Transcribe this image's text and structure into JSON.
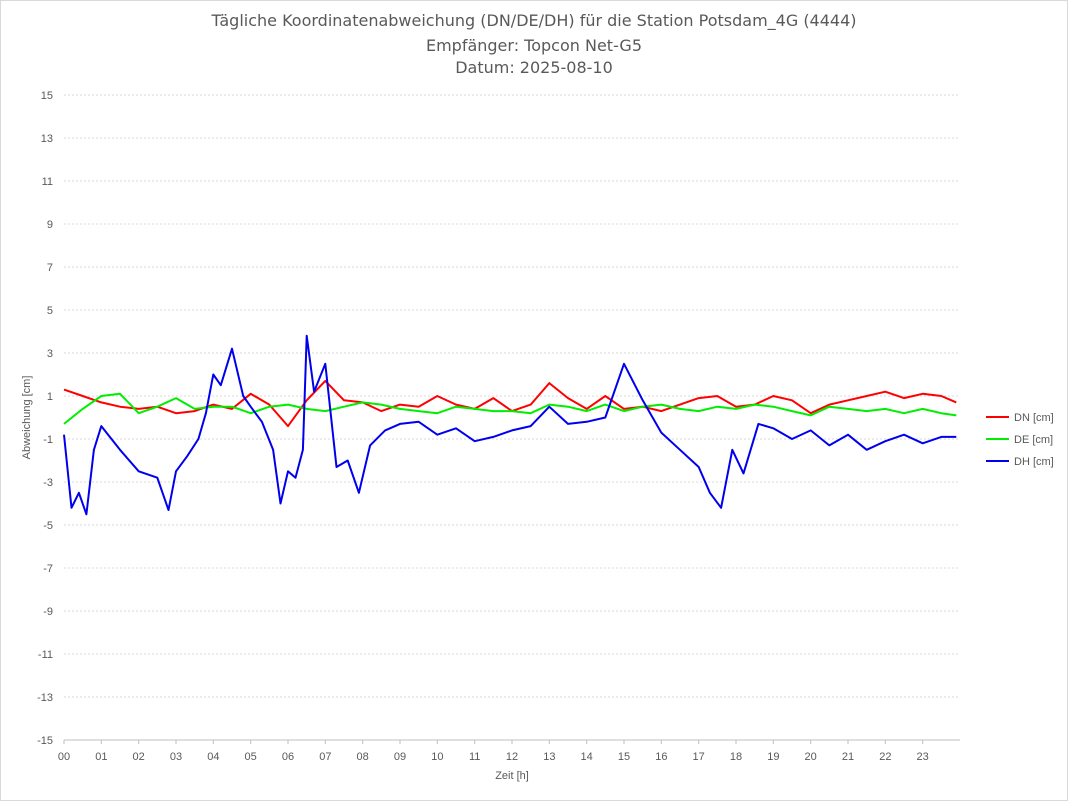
{
  "chart_data": {
    "type": "line",
    "title": "Tägliche Koordinatenabweichung (DN/DE/DH) für die Station Potsdam_4G (4444)",
    "subtitle": "Empfänger: Topcon Net-G5",
    "date_line": "Datum: 2025-08-10",
    "xlabel": "Zeit [h]",
    "ylabel": "Abweichung [cm]",
    "xlim": [
      0,
      24
    ],
    "ylim": [
      -15,
      15
    ],
    "x_ticks": [
      "00",
      "01",
      "02",
      "03",
      "04",
      "05",
      "06",
      "07",
      "08",
      "09",
      "10",
      "11",
      "12",
      "13",
      "14",
      "15",
      "16",
      "17",
      "18",
      "19",
      "20",
      "21",
      "22",
      "23"
    ],
    "y_ticks": [
      15,
      13,
      11,
      9,
      7,
      5,
      3,
      1,
      -1,
      -3,
      -5,
      -7,
      -9,
      -11,
      -13,
      -15
    ],
    "grid": "horizontal dotted",
    "legend_position": "right",
    "series": [
      {
        "name": "DN [cm]",
        "color": "#ff0000",
        "x": [
          0,
          0.5,
          1,
          1.5,
          2,
          2.5,
          3,
          3.5,
          4,
          4.5,
          5,
          5.5,
          6,
          6.5,
          7,
          7.5,
          8,
          8.5,
          9,
          9.5,
          10,
          10.5,
          11,
          11.5,
          12,
          12.5,
          13,
          13.5,
          14,
          14.5,
          15,
          15.5,
          16,
          16.5,
          17,
          17.5,
          18,
          18.5,
          19,
          19.5,
          20,
          20.5,
          21,
          21.5,
          22,
          22.5,
          23,
          23.5,
          23.9
        ],
        "y": [
          1.3,
          1.0,
          0.7,
          0.5,
          0.4,
          0.5,
          0.2,
          0.3,
          0.6,
          0.4,
          1.1,
          0.6,
          -0.4,
          0.8,
          1.7,
          0.8,
          0.7,
          0.3,
          0.6,
          0.5,
          1.0,
          0.6,
          0.4,
          0.9,
          0.3,
          0.6,
          1.6,
          0.9,
          0.4,
          1.0,
          0.4,
          0.5,
          0.3,
          0.6,
          0.9,
          1.0,
          0.5,
          0.6,
          1.0,
          0.8,
          0.2,
          0.6,
          0.8,
          1.0,
          1.2,
          0.9,
          1.1,
          1.0,
          0.7
        ]
      },
      {
        "name": "DE [cm]",
        "color": "#00ee00",
        "x": [
          0,
          0.5,
          1,
          1.5,
          2,
          2.5,
          3,
          3.5,
          4,
          4.5,
          5,
          5.5,
          6,
          6.5,
          7,
          7.5,
          8,
          8.5,
          9,
          9.5,
          10,
          10.5,
          11,
          11.5,
          12,
          12.5,
          13,
          13.5,
          14,
          14.5,
          15,
          15.5,
          16,
          16.5,
          17,
          17.5,
          18,
          18.5,
          19,
          19.5,
          20,
          20.5,
          21,
          21.5,
          22,
          22.5,
          23,
          23.5,
          23.9
        ],
        "y": [
          -0.3,
          0.4,
          1.0,
          1.1,
          0.2,
          0.5,
          0.9,
          0.4,
          0.5,
          0.5,
          0.2,
          0.5,
          0.6,
          0.4,
          0.3,
          0.5,
          0.7,
          0.6,
          0.4,
          0.3,
          0.2,
          0.5,
          0.4,
          0.3,
          0.3,
          0.2,
          0.6,
          0.5,
          0.3,
          0.6,
          0.3,
          0.5,
          0.6,
          0.4,
          0.3,
          0.5,
          0.4,
          0.6,
          0.5,
          0.3,
          0.1,
          0.5,
          0.4,
          0.3,
          0.4,
          0.2,
          0.4,
          0.2,
          0.1
        ]
      },
      {
        "name": "DH [cm]",
        "color": "#0000ee",
        "x": [
          0,
          0.2,
          0.4,
          0.6,
          0.8,
          1,
          1.5,
          2,
          2.5,
          2.8,
          3,
          3.3,
          3.6,
          3.8,
          4,
          4.2,
          4.5,
          4.8,
          5,
          5.3,
          5.6,
          5.8,
          6,
          6.2,
          6.4,
          6.5,
          6.7,
          7,
          7.3,
          7.6,
          7.9,
          8.2,
          8.6,
          9,
          9.5,
          10,
          10.5,
          11,
          11.5,
          12,
          12.5,
          13,
          13.5,
          14,
          14.5,
          15,
          15.5,
          16,
          16.5,
          17,
          17.3,
          17.6,
          17.9,
          18.2,
          18.6,
          19,
          19.5,
          20,
          20.5,
          21,
          21.5,
          22,
          22.5,
          23,
          23.5,
          23.9
        ],
        "y": [
          -0.8,
          -4.2,
          -3.5,
          -4.5,
          -1.5,
          -0.4,
          -1.5,
          -2.5,
          -2.8,
          -4.3,
          -2.5,
          -1.8,
          -1.0,
          0.2,
          2.0,
          1.5,
          3.2,
          1.0,
          0.5,
          -0.2,
          -1.5,
          -4.0,
          -2.5,
          -2.8,
          -1.5,
          3.8,
          1.2,
          2.5,
          -2.3,
          -2.0,
          -3.5,
          -1.3,
          -0.6,
          -0.3,
          -0.2,
          -0.8,
          -0.5,
          -1.1,
          -0.9,
          -0.6,
          -0.4,
          0.5,
          -0.3,
          -0.2,
          0.0,
          2.5,
          0.8,
          -0.7,
          -1.5,
          -2.3,
          -3.5,
          -4.2,
          -1.5,
          -2.6,
          -0.3,
          -0.5,
          -1.0,
          -0.6,
          -1.3,
          -0.8,
          -1.5,
          -1.1,
          -0.8,
          -1.2,
          -0.9,
          -0.9
        ]
      }
    ]
  }
}
